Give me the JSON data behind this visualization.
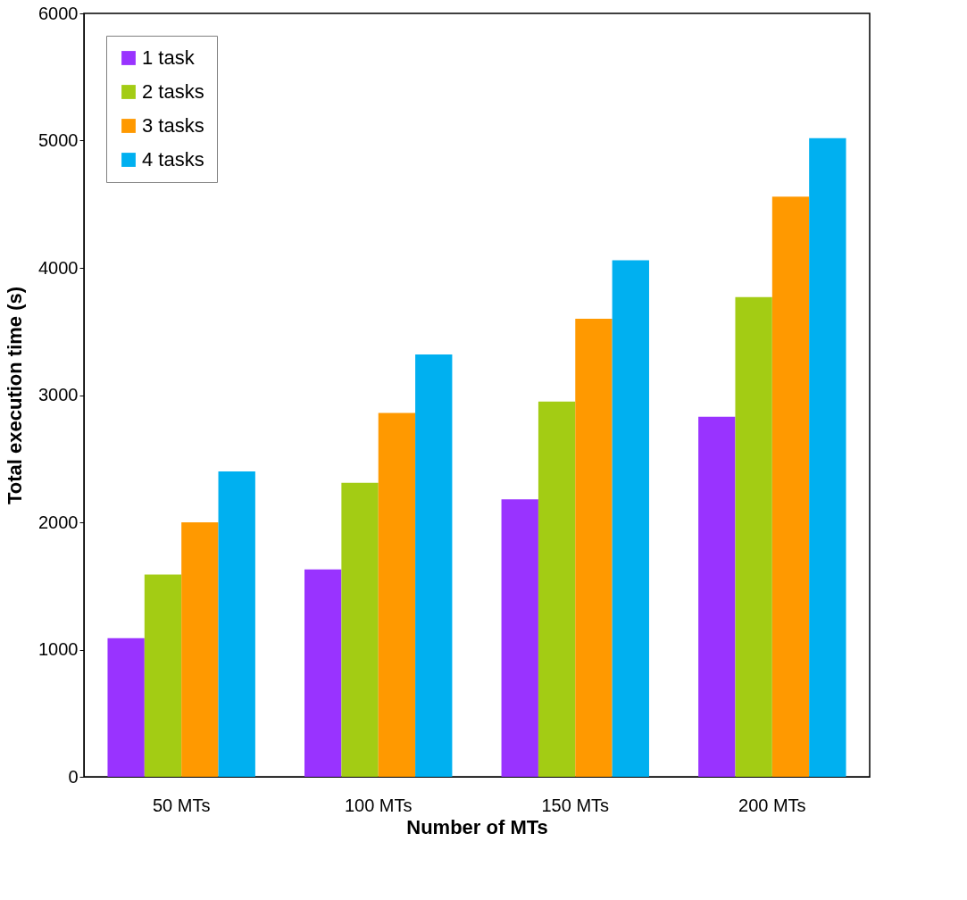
{
  "chart_data": {
    "type": "bar",
    "xlabel": "Number of MTs",
    "ylabel": "Total execution time (s)",
    "categories": [
      "50  MTs",
      "100 MTs",
      "150 MTs",
      "200 MTs"
    ],
    "series": [
      {
        "name": "1 task",
        "color": "#9933ff",
        "values": [
          1090,
          1630,
          2180,
          2830
        ]
      },
      {
        "name": "2 tasks",
        "color": "#a3cc14",
        "values": [
          1590,
          2310,
          2950,
          3770
        ]
      },
      {
        "name": "3 tasks",
        "color": "#ff9900",
        "values": [
          2000,
          2860,
          3600,
          4560
        ]
      },
      {
        "name": "4 tasks",
        "color": "#00b0f0",
        "values": [
          2400,
          3320,
          4060,
          5020
        ]
      }
    ],
    "ylim": [
      0,
      6000
    ],
    "yticks": [
      0,
      1000,
      2000,
      3000,
      4000,
      5000,
      6000
    ],
    "grid": false,
    "legend": "top left"
  }
}
